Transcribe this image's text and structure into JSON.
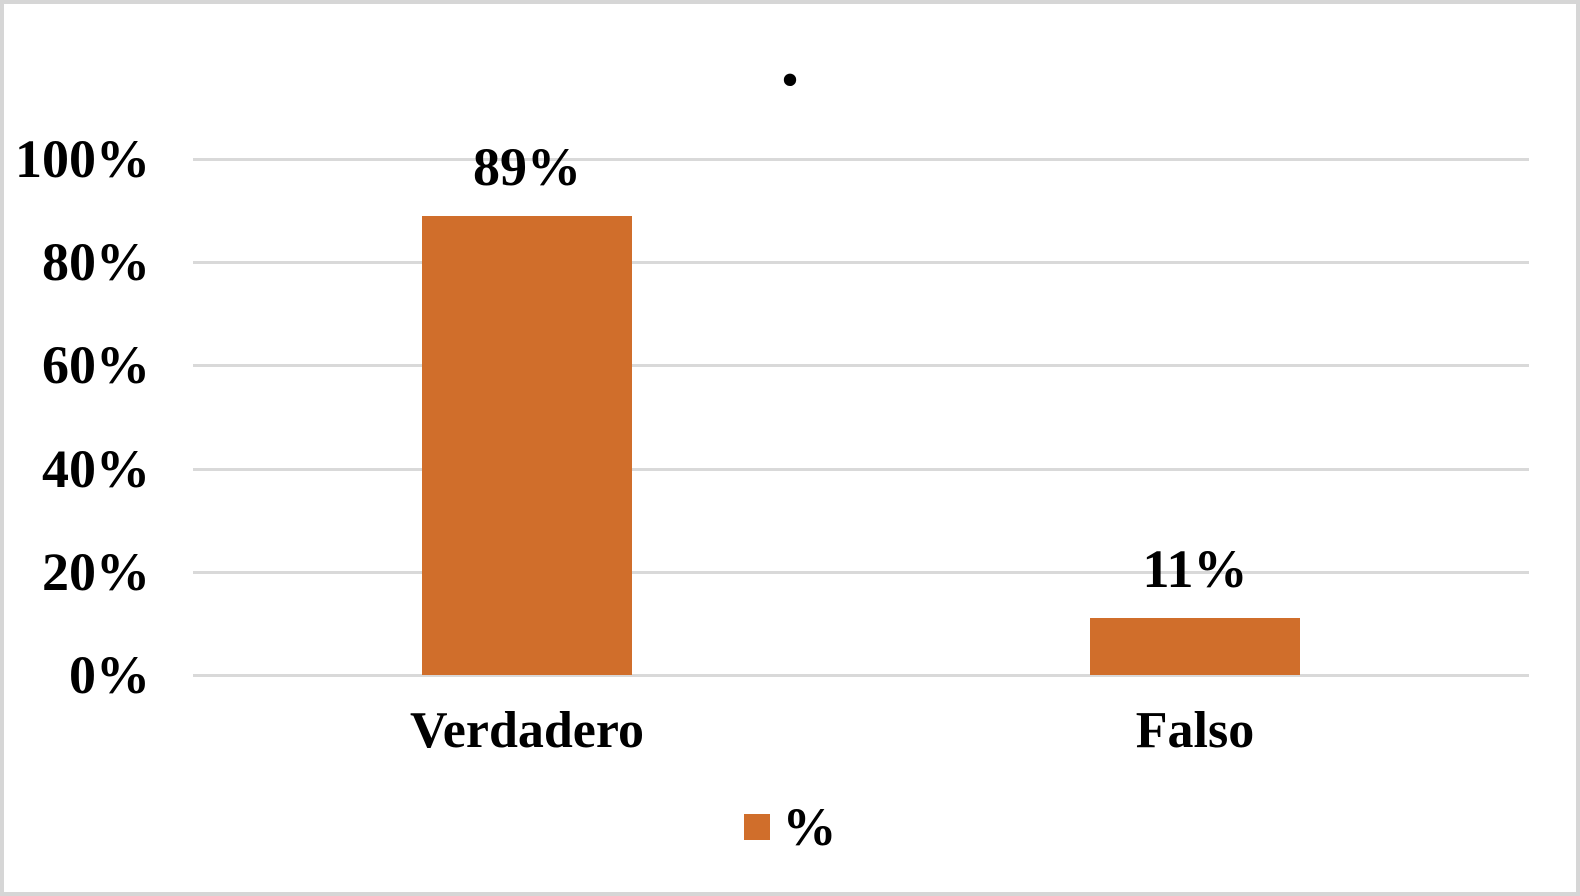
{
  "chart_data": {
    "type": "bar",
    "title": ".",
    "categories": [
      "Verdadero",
      "Falso"
    ],
    "series": [
      {
        "name": "%",
        "values": [
          89,
          11
        ]
      }
    ],
    "data_labels": [
      "89%",
      "11%"
    ],
    "y_ticks": [
      {
        "value": 0,
        "label": "0%"
      },
      {
        "value": 20,
        "label": "20%"
      },
      {
        "value": 40,
        "label": "40%"
      },
      {
        "value": 60,
        "label": "60%"
      },
      {
        "value": 80,
        "label": "80%"
      },
      {
        "value": 100,
        "label": "100%"
      }
    ],
    "ylim": [
      0,
      100
    ],
    "xlabel": "",
    "ylabel": "",
    "grid": true,
    "legend_position": "bottom",
    "colors": {
      "bar": "#d06e2b",
      "gridline": "#d9d9d9",
      "text": "#000000",
      "frame_border": "#d6d6d6"
    }
  }
}
